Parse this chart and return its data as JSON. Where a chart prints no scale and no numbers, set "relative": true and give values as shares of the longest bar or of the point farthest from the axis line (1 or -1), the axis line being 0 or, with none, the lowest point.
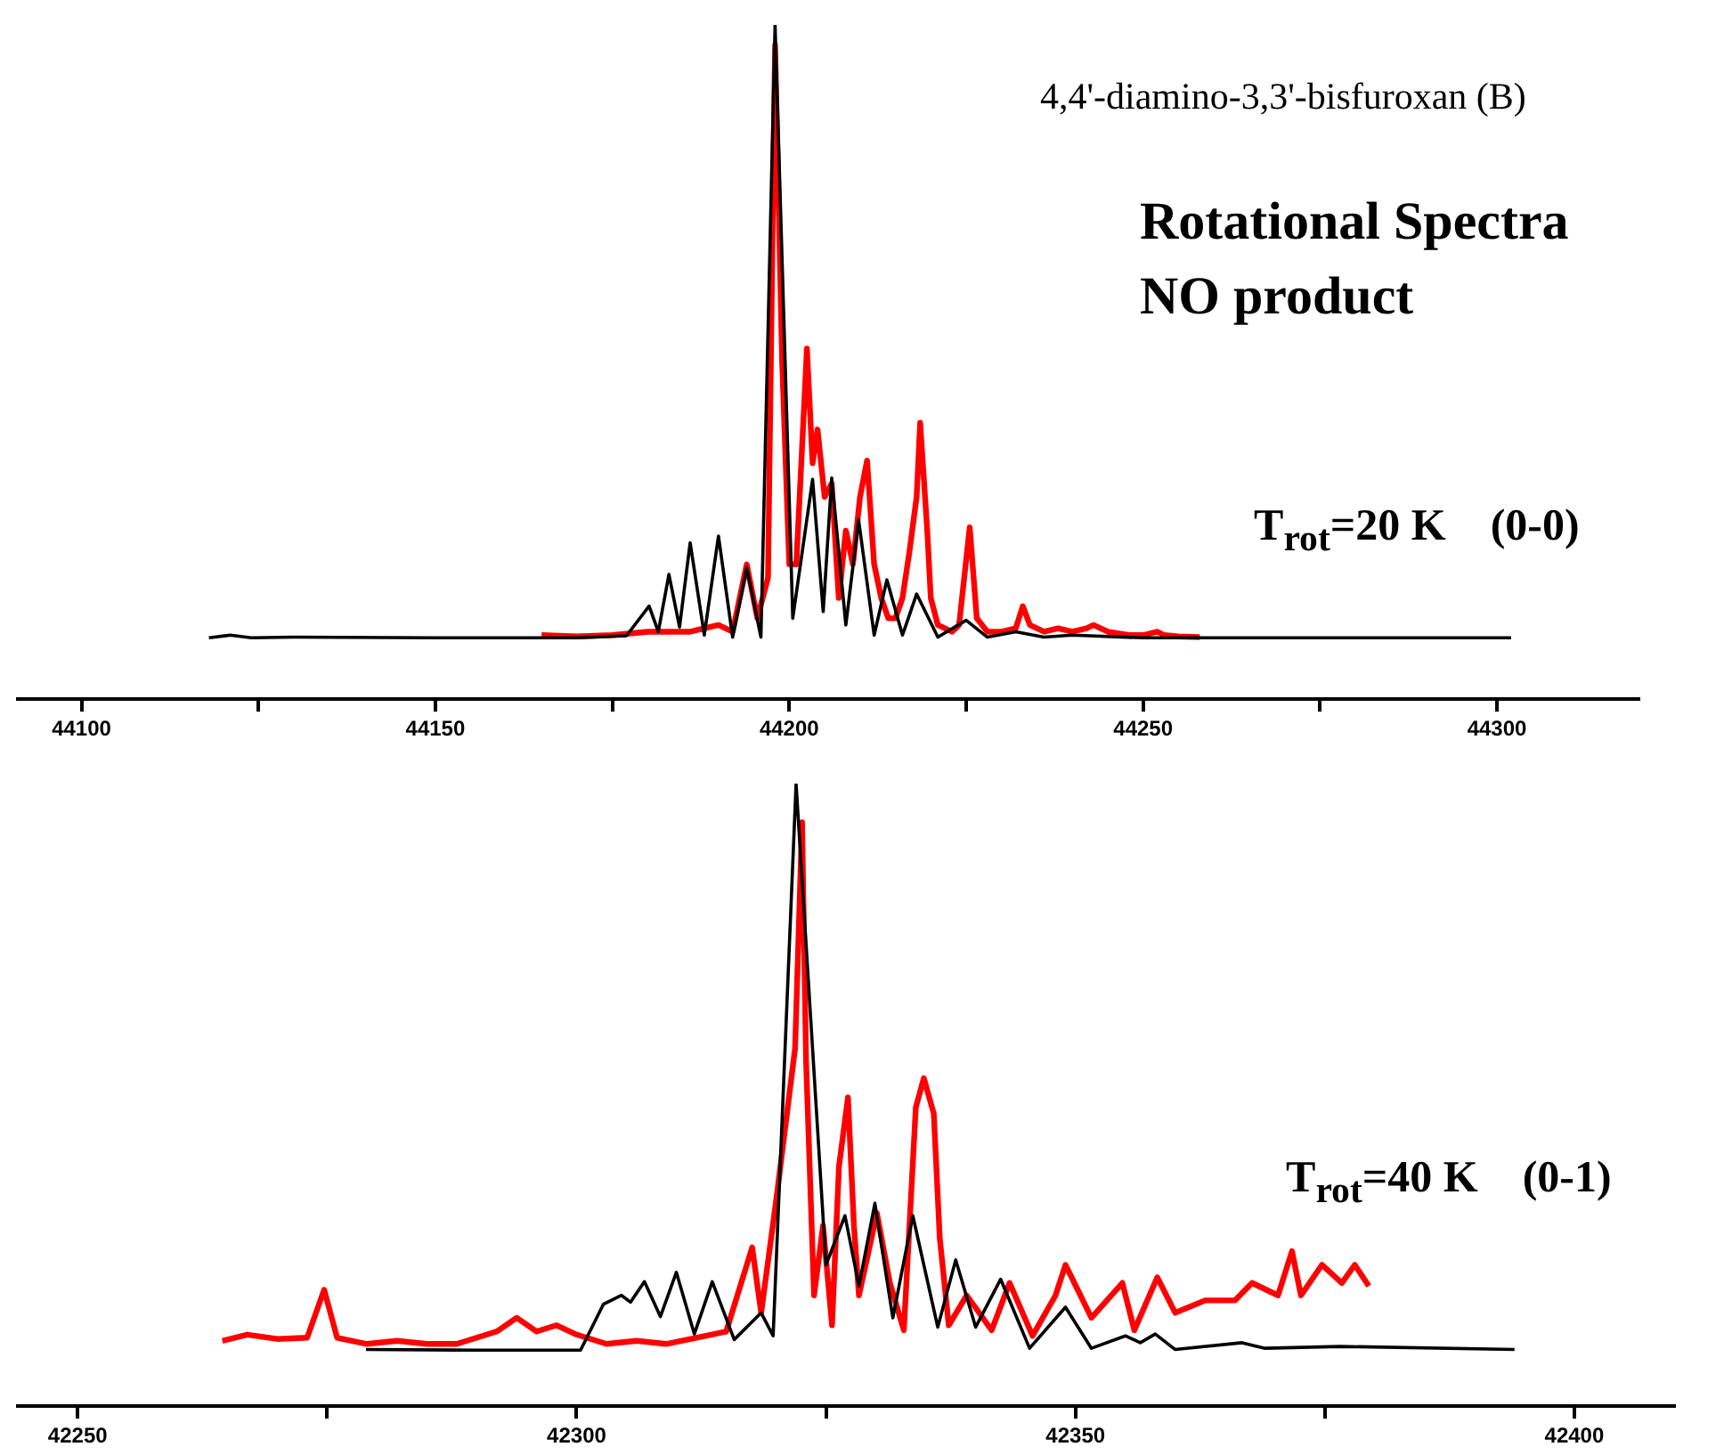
{
  "chart_data": [
    {
      "type": "line",
      "relative": true,
      "marker": "none",
      "tick_labels": "x",
      "xlim": [
        44091,
        44320
      ],
      "xticks": [
        44100,
        {
          "value": 44125,
          "label": null
        },
        44150,
        {
          "value": 44175,
          "label": null
        },
        44200,
        {
          "value": 44225,
          "label": null
        },
        44250,
        {
          "value": 44275,
          "label": null
        },
        44300
      ],
      "annotations": [
        "4,4'-diamino-3,3'-bisfuroxan (B)",
        "Rotational Spectra",
        "NO product",
        "T$_{rot}$=20 K    (0-0)"
      ],
      "series": [
        {
          "color": "#ff0000",
          "x": [
            44165,
            44170,
            44175,
            44180,
            44183,
            44186,
            44188,
            44190,
            44192,
            44194,
            44195.5,
            44197,
            44198,
            44199,
            44200,
            44201,
            44202.5,
            44203.3,
            44204,
            44205,
            44206,
            44207,
            44208,
            44209,
            44210,
            44211,
            44212,
            44213,
            44214,
            44215,
            44216,
            44217,
            44218,
            44218.5,
            44219.5,
            44220,
            44221,
            44223,
            44224,
            44225.5,
            44226.5,
            44228,
            44230,
            44232,
            44233,
            44234,
            44236,
            44238,
            44240,
            44242,
            44243,
            44245,
            44248,
            44250,
            44252,
            44253,
            44255,
            44258
          ],
          "values": [
            0.095,
            0.093,
            0.095,
            0.1,
            0.1,
            0.1,
            0.105,
            0.11,
            0.1,
            0.2,
            0.12,
            0.18,
            0.97,
            0.5,
            0.2,
            0.2,
            0.52,
            0.35,
            0.4,
            0.3,
            0.32,
            0.15,
            0.25,
            0.2,
            0.3,
            0.354,
            0.2,
            0.15,
            0.12,
            0.12,
            0.15,
            0.22,
            0.3,
            0.41,
            0.25,
            0.15,
            0.11,
            0.1,
            0.11,
            0.255,
            0.12,
            0.1,
            0.1,
            0.105,
            0.138,
            0.11,
            0.1,
            0.105,
            0.1,
            0.105,
            0.11,
            0.1,
            0.095,
            0.095,
            0.1,
            0.095,
            0.093,
            0.092
          ]
        },
        {
          "color": "#000000",
          "x": [
            44118,
            44121,
            44124,
            44130,
            44150,
            44170,
            44177,
            44180.2,
            44181.5,
            44183,
            44184.5,
            44186,
            44188,
            44190,
            44192,
            44194,
            44196,
            44198,
            44200.5,
            44203.3,
            44204.8,
            44206,
            44208,
            44209.8,
            44212,
            44213.8,
            44216,
            44218,
            44221,
            44225,
            44228,
            44232,
            44236,
            44240,
            44250,
            44270,
            44290,
            44302
          ],
          "values": [
            0.091,
            0.095,
            0.091,
            0.092,
            0.091,
            0.091,
            0.094,
            0.138,
            0.1,
            0.185,
            0.107,
            0.232,
            0.095,
            0.242,
            0.092,
            0.195,
            0.092,
            1,
            0.12,
            0.326,
            0.13,
            0.328,
            0.11,
            0.266,
            0.095,
            0.177,
            0.095,
            0.156,
            0.092,
            0.117,
            0.092,
            0.1,
            0.092,
            0.095,
            0.091,
            0.091,
            0.091,
            0.091
          ]
        }
      ]
    },
    {
      "type": "line",
      "relative": true,
      "marker": "none",
      "tick_labels": "x",
      "xlim": [
        42244,
        42410
      ],
      "xticks": [
        42250,
        {
          "value": 42275,
          "label": null
        },
        42300,
        {
          "value": 42325,
          "label": null
        },
        42350,
        {
          "value": 42375,
          "label": null
        },
        42400
      ],
      "annotations": [
        "T$_{rot}$=40 K    (0-1)"
      ],
      "series": [
        {
          "color": "#ff0000",
          "x": [
            42264.5,
            42267,
            42270,
            42273,
            42274.7,
            42276,
            42279,
            42282,
            42285,
            42288,
            42292,
            42294,
            42296,
            42298,
            42300,
            42303,
            42306,
            42309,
            42312,
            42315,
            42317.6,
            42318.5,
            42320,
            42321.9,
            42322.6,
            42323,
            42323.8,
            42324.7,
            42325.6,
            42326.3,
            42327.2,
            42327.8,
            42328.3,
            42330.1,
            42331.4,
            42332.8,
            42334,
            42334.8,
            42335.8,
            42336.4,
            42337.3,
            42339.1,
            42341.6,
            42343.4,
            42345.7,
            42348,
            42349,
            42351.6,
            42354.7,
            42355.9,
            42358.2,
            42360,
            42363,
            42366,
            42367.7,
            42370.3,
            42371.7,
            42372.6,
            42374.7,
            42376.7,
            42378,
            42379.4
          ],
          "values": [
            0.105,
            0.115,
            0.108,
            0.11,
            0.187,
            0.11,
            0.1,
            0.105,
            0.1,
            0.1,
            0.12,
            0.142,
            0.12,
            0.13,
            0.115,
            0.1,
            0.105,
            0.1,
            0.11,
            0.12,
            0.255,
            0.15,
            0.33,
            0.575,
            0.938,
            0.555,
            0.178,
            0.29,
            0.13,
            0.385,
            0.496,
            0.29,
            0.178,
            0.31,
            0.198,
            0.122,
            0.48,
            0.527,
            0.47,
            0.27,
            0.13,
            0.178,
            0.122,
            0.198,
            0.113,
            0.178,
            0.227,
            0.142,
            0.198,
            0.122,
            0.207,
            0.15,
            0.17,
            0.17,
            0.198,
            0.178,
            0.249,
            0.178,
            0.227,
            0.198,
            0.227,
            0.193
          ]
        },
        {
          "color": "#000000",
          "x": [
            42278.9,
            42290,
            42300.4,
            42302.7,
            42304.5,
            42305.4,
            42306.8,
            42308.4,
            42310,
            42311.8,
            42313.6,
            42315.8,
            42318.5,
            42319.7,
            42322,
            42325,
            42326.9,
            42328.3,
            42329.9,
            42331.7,
            42333.7,
            42336.2,
            42338,
            42340,
            42342.5,
            42345.4,
            42349,
            42351.6,
            42355,
            42356.5,
            42358,
            42360,
            42366.7,
            42369,
            42376.5,
            42394
          ],
          "values": [
            0.091,
            0.09,
            0.09,
            0.164,
            0.178,
            0.167,
            0.2,
            0.144,
            0.215,
            0.116,
            0.2,
            0.107,
            0.15,
            0.113,
            1,
            0.227,
            0.306,
            0.193,
            0.326,
            0.142,
            0.306,
            0.127,
            0.235,
            0.127,
            0.204,
            0.093,
            0.159,
            0.093,
            0.113,
            0.102,
            0.116,
            0.091,
            0.102,
            0.093,
            0.096,
            0.091
          ]
        }
      ]
    }
  ]
}
